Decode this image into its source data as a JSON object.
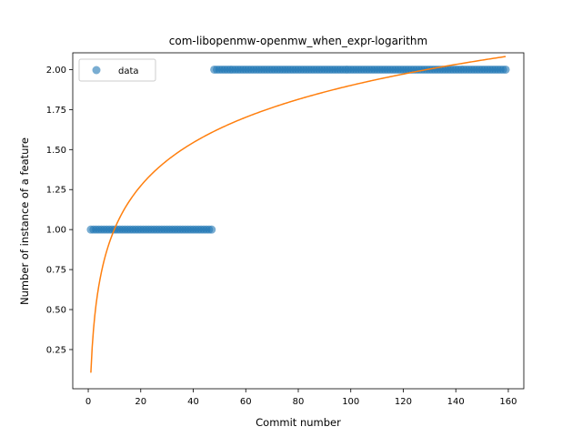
{
  "chart_data": {
    "type": "scatter",
    "title": "com-libopenmw-openmw_when_expr-logarithm",
    "xlabel": "Commit number",
    "ylabel": "Number of instance of a feature",
    "xlim": [
      -5.9,
      165.9
    ],
    "ylim": [
      0.005,
      2.105
    ],
    "xticks": [
      0,
      20,
      40,
      60,
      80,
      100,
      120,
      140,
      160
    ],
    "yticks": [
      0.25,
      0.5,
      0.75,
      1.0,
      1.25,
      1.5,
      1.75,
      2.0
    ],
    "xtick_labels": [
      "0",
      "20",
      "40",
      "60",
      "80",
      "100",
      "120",
      "140",
      "160"
    ],
    "ytick_labels": [
      "0.25",
      "0.50",
      "0.75",
      "1.00",
      "1.25",
      "1.50",
      "1.75",
      "2.00"
    ],
    "legend": {
      "location": "upper-left",
      "entries": [
        "data"
      ]
    },
    "series": [
      {
        "name": "data",
        "kind": "scatter",
        "color": "#1f77b4",
        "segments": [
          {
            "x_from": 1,
            "x_to": 47,
            "y": 1
          },
          {
            "x_from": 48,
            "x_to": 159,
            "y": 2
          }
        ]
      },
      {
        "kind": "line",
        "color": "#ff7f0e",
        "model": "logarithmic",
        "a": 0.1054,
        "b": 0.3899,
        "x_from": 1,
        "x_to": 159
      }
    ]
  }
}
